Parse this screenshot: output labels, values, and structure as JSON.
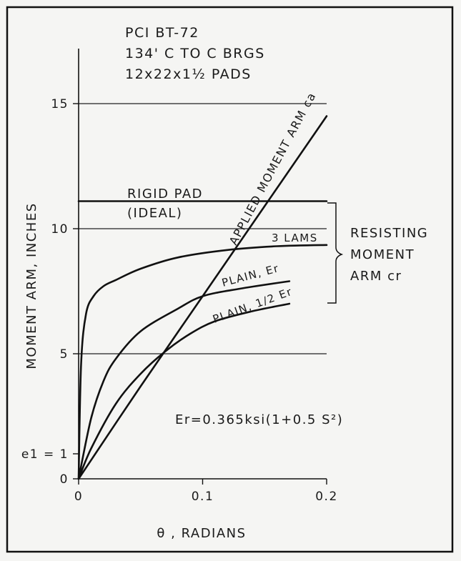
{
  "chart_data": {
    "type": "line",
    "header_lines": [
      "PCI BT-72",
      "134' C TO C BRGS",
      "12x22x1½ PADS"
    ],
    "xlabel": "θ , RADIANS",
    "ylabel": "MOMENT ARM, INCHES",
    "xlim": [
      0,
      0.2
    ],
    "ylim": [
      0,
      17.5
    ],
    "x_ticks": [
      {
        "value": 0,
        "label": "0"
      },
      {
        "value": 0.1,
        "label": "0.1"
      },
      {
        "value": 0.2,
        "label": "0.2"
      }
    ],
    "y_ticks": [
      {
        "value": 0,
        "label": "0"
      },
      {
        "value": 1,
        "label": "e1 = 1"
      },
      {
        "value": 5,
        "label": "5"
      },
      {
        "value": 10,
        "label": "10"
      },
      {
        "value": 15,
        "label": "15"
      }
    ],
    "gridlines_y": [
      5,
      10,
      15
    ],
    "grid": "horizontal at 5, 10, 15",
    "series": [
      {
        "name": "APPLIED MOMENT ARM ca",
        "x": [
          0,
          0.05,
          0.1,
          0.15,
          0.2
        ],
        "y": [
          0,
          3.7,
          7.3,
          10.9,
          14.5
        ]
      },
      {
        "name": "RIGID PAD (IDEAL)",
        "x": [
          0,
          0.2
        ],
        "y": [
          11.1,
          11.1
        ]
      },
      {
        "name": "3 LAMS",
        "x": [
          0,
          0.002,
          0.006,
          0.012,
          0.02,
          0.03,
          0.05,
          0.08,
          0.12,
          0.16,
          0.2
        ],
        "y": [
          0,
          4.6,
          6.6,
          7.3,
          7.7,
          7.95,
          8.4,
          8.85,
          9.15,
          9.3,
          9.35
        ]
      },
      {
        "name": "PLAIN, Er",
        "x": [
          0,
          0.01,
          0.02,
          0.03,
          0.05,
          0.08,
          0.1,
          0.13,
          0.17
        ],
        "y": [
          0,
          2.4,
          3.9,
          4.8,
          5.9,
          6.8,
          7.3,
          7.6,
          7.9
        ]
      },
      {
        "name": "PLAIN, 1/2 Er",
        "x": [
          0,
          0.01,
          0.03,
          0.05,
          0.07,
          0.09,
          0.11,
          0.14,
          0.17
        ],
        "y": [
          0,
          1.2,
          3.0,
          4.2,
          5.1,
          5.8,
          6.3,
          6.7,
          7.0
        ]
      }
    ],
    "annotations": {
      "applied": "APPLIED MOMENT ARM ca",
      "rigid_1": "RIGID PAD",
      "rigid_2": "(IDEAL)",
      "lams": "3 LAMS",
      "plain": "PLAIN, Er",
      "plain_half": "PLAIN, 1/2 Er",
      "resisting_1": "RESISTING",
      "resisting_2": "MOMENT",
      "resisting_3": "ARM cr",
      "formula": "Er=0.365ksi(1+0.5 S²)"
    }
  }
}
